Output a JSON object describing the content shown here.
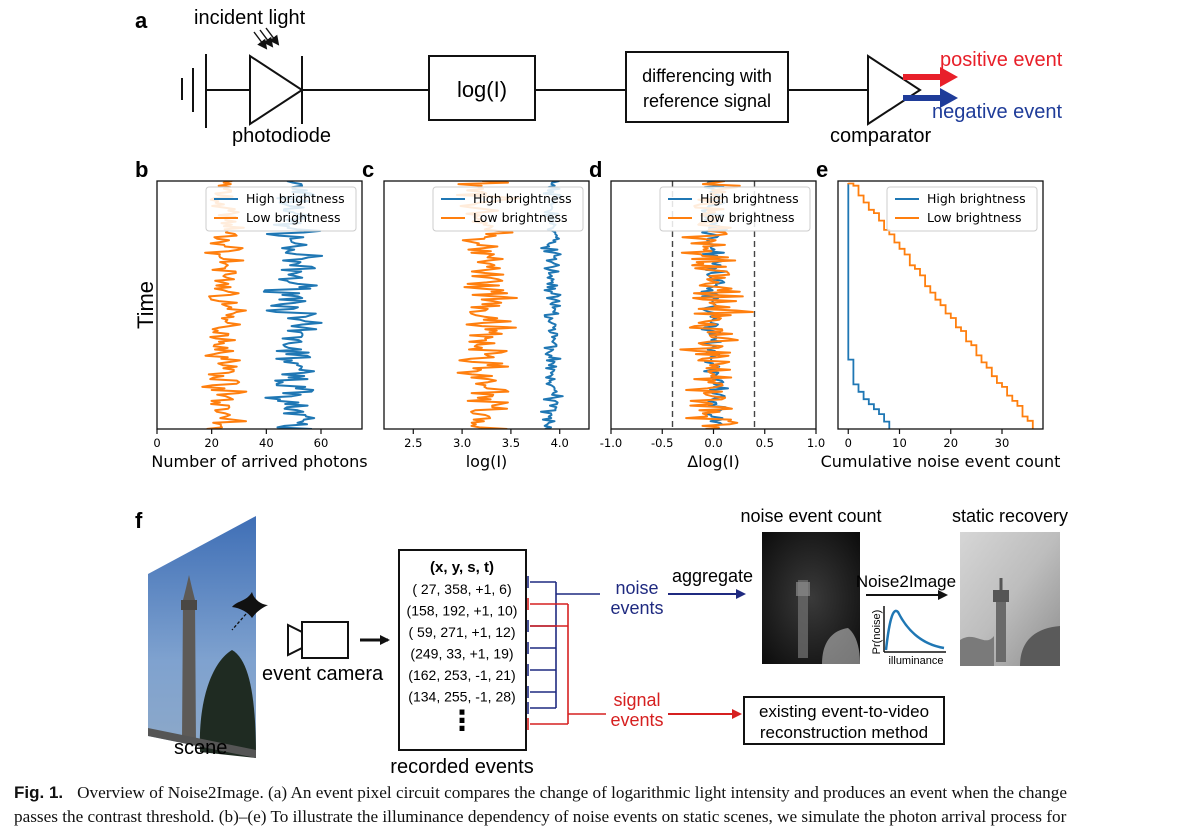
{
  "panel_a": {
    "label": "a",
    "incident_light": "incident light",
    "photodiode": "photodiode",
    "log_box": "log(I)",
    "diff_box_line1": "differencing with",
    "diff_box_line2": "reference signal",
    "comparator": "comparator",
    "positive_event": "positive event",
    "negative_event": "negative event"
  },
  "panel_f": {
    "label": "f",
    "scene": "scene",
    "event_camera": "event camera",
    "recorded_events": "recorded events",
    "table_header": "(x, y, s, t)",
    "events": [
      "( 27, 358, +1, 6)",
      "(158, 192, +1, 10)",
      "( 59, 271, +1, 12)",
      "(249,  33, +1, 19)",
      "(162, 253, -1, 21)",
      "(134, 255, -1, 28)"
    ],
    "ellipsis": "⋮",
    "noise_events_line1": "noise",
    "noise_events_line2": "events",
    "signal_events_line1": "signal",
    "signal_events_line2": "events",
    "aggregate": "aggregate",
    "noise_event_count": "noise event count",
    "static_recovery": "static recovery",
    "noise2image": "Noise2Image",
    "pr_noise": "Pr(noise)",
    "illuminance": "illuminance",
    "existing_line1": "existing event-to-video",
    "existing_line2": "reconstruction method"
  },
  "caption": {
    "label": "Fig. 1.",
    "line1": "Overview of Noise2Image. (a) An event pixel circuit compares the change of logarithmic light intensity and produces an event when the change",
    "line2": "passes the contrast threshold. (b)–(e) To illustrate the illuminance dependency of noise events on static scenes, we simulate the photon arrival process for"
  },
  "colors": {
    "high": "#1f77b4",
    "low": "#ff7f0e",
    "positive": "#e8202a",
    "negative": "#1f3c99",
    "signal_line": "#d62020",
    "noise_line": "#1f2a80"
  },
  "chart_data": [
    {
      "panel": "b",
      "type": "line",
      "xlabel": "Number of arrived photons",
      "ylabel": "Time",
      "xlim": [
        0,
        75
      ],
      "xticks": [
        0,
        20,
        40,
        60
      ],
      "legend": "top-right",
      "series": [
        {
          "name": "High brightness",
          "center": 50,
          "spread": 9
        },
        {
          "name": "Low brightness",
          "center": 25,
          "spread": 7
        }
      ]
    },
    {
      "panel": "c",
      "type": "line",
      "xlabel": "log(I)",
      "xlim": [
        2.2,
        4.3
      ],
      "xticks": [
        2.5,
        3.0,
        3.5,
        4.0
      ],
      "legend": "top-right",
      "series": [
        {
          "name": "High brightness",
          "center": 3.92,
          "spread": 0.1
        },
        {
          "name": "Low brightness",
          "center": 3.22,
          "spread": 0.3
        }
      ]
    },
    {
      "panel": "d",
      "type": "line",
      "xlabel": "Δlog(I)",
      "xlim": [
        -1.0,
        1.0
      ],
      "xticks": [
        -1.0,
        -0.5,
        0.0,
        0.5,
        1.0
      ],
      "thresholds": [
        -0.4,
        0.4
      ],
      "legend": "top-right",
      "series": [
        {
          "name": "High brightness",
          "center": 0.0,
          "spread": 0.12
        },
        {
          "name": "Low brightness",
          "center": 0.0,
          "spread": 0.3
        }
      ]
    },
    {
      "panel": "e",
      "type": "line",
      "xlabel": "Cumulative noise event count",
      "xlim": [
        -2,
        38
      ],
      "xticks": [
        0,
        10,
        20,
        30
      ],
      "legend": "top-right",
      "series": [
        {
          "name": "High brightness",
          "final": 8
        },
        {
          "name": "Low brightness",
          "final": 36
        }
      ]
    }
  ]
}
